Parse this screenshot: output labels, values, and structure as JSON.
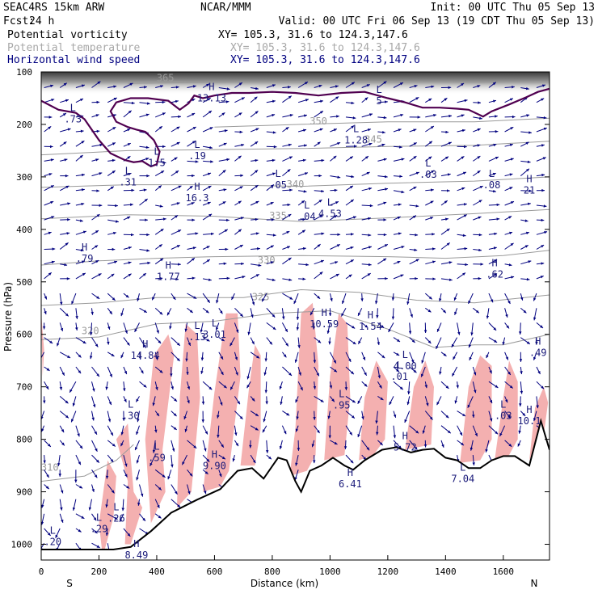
{
  "header": {
    "model": "SEAC4RS 15km ARW",
    "org": "NCAR/MMM",
    "init": "Init: 00 UTC Thu 05 Sep 13",
    "fcst_label": "Fcst:",
    "fcst_value": "24 h",
    "valid": "Valid: 00 UTC Fri 06 Sep 13 (19 CDT Thu 05 Sep 13)",
    "fields": [
      {
        "name": "Potential vorticity",
        "xy": "XY= 105.3, 31.6 to 124.3,147.6",
        "color": "#000000",
        "xy_color": "#000000"
      },
      {
        "name": "Potential temperature",
        "xy": "XY= 105.3, 31.6 to 124.3,147.6",
        "color": "#a8a8a8",
        "xy_color": "#a8a8a8"
      },
      {
        "name": "Horizontal wind speed",
        "xy": "XY= 105.3, 31.6 to 124.3,147.6",
        "color": "#000080",
        "xy_color": "#000080"
      }
    ]
  },
  "chart_data": {
    "type": "cross-section",
    "xlabel": "Distance (km)",
    "ylabel": "Pressure (hPa)",
    "xlim": [
      0,
      1760
    ],
    "ylim": [
      1030,
      100
    ],
    "x_ticks": [
      0,
      200,
      400,
      600,
      800,
      1000,
      1200,
      1400,
      1600
    ],
    "y_ticks": [
      100,
      200,
      300,
      400,
      500,
      600,
      700,
      800,
      900,
      1000
    ],
    "x_end_labels": {
      "left": "S",
      "right": "N"
    },
    "colors": {
      "wind": "#00007f",
      "theta": "#9a9a9a",
      "pv_contour": "#500050",
      "shading": "#f4b0b0",
      "terrain": "#000000",
      "hl_label": "#1a1a7a"
    },
    "terrain": [
      {
        "x": 0,
        "p": 1010
      },
      {
        "x": 250,
        "p": 1010
      },
      {
        "x": 310,
        "p": 1005
      },
      {
        "x": 380,
        "p": 975
      },
      {
        "x": 450,
        "p": 940
      },
      {
        "x": 540,
        "p": 915
      },
      {
        "x": 620,
        "p": 895
      },
      {
        "x": 680,
        "p": 860
      },
      {
        "x": 730,
        "p": 855
      },
      {
        "x": 770,
        "p": 875
      },
      {
        "x": 820,
        "p": 835
      },
      {
        "x": 850,
        "p": 840
      },
      {
        "x": 880,
        "p": 880
      },
      {
        "x": 900,
        "p": 900
      },
      {
        "x": 930,
        "p": 860
      },
      {
        "x": 970,
        "p": 850
      },
      {
        "x": 1010,
        "p": 835
      },
      {
        "x": 1050,
        "p": 850
      },
      {
        "x": 1080,
        "p": 858
      },
      {
        "x": 1120,
        "p": 840
      },
      {
        "x": 1180,
        "p": 820
      },
      {
        "x": 1230,
        "p": 815
      },
      {
        "x": 1280,
        "p": 825
      },
      {
        "x": 1320,
        "p": 820
      },
      {
        "x": 1360,
        "p": 818
      },
      {
        "x": 1400,
        "p": 835
      },
      {
        "x": 1440,
        "p": 840
      },
      {
        "x": 1480,
        "p": 855
      },
      {
        "x": 1520,
        "p": 855
      },
      {
        "x": 1560,
        "p": 840
      },
      {
        "x": 1600,
        "p": 832
      },
      {
        "x": 1640,
        "p": 832
      },
      {
        "x": 1690,
        "p": 850
      },
      {
        "x": 1730,
        "p": 765
      },
      {
        "x": 1760,
        "p": 820
      }
    ],
    "pv_contour": [
      {
        "x": 0,
        "p": 155
      },
      {
        "x": 60,
        "p": 172
      },
      {
        "x": 120,
        "p": 178
      },
      {
        "x": 150,
        "p": 190
      },
      {
        "x": 200,
        "p": 230
      },
      {
        "x": 240,
        "p": 255
      },
      {
        "x": 290,
        "p": 268
      },
      {
        "x": 320,
        "p": 272
      },
      {
        "x": 350,
        "p": 270
      },
      {
        "x": 380,
        "p": 280
      },
      {
        "x": 400,
        "p": 276
      },
      {
        "x": 410,
        "p": 252
      },
      {
        "x": 390,
        "p": 230
      },
      {
        "x": 360,
        "p": 214
      },
      {
        "x": 330,
        "p": 210
      },
      {
        "x": 300,
        "p": 205
      },
      {
        "x": 260,
        "p": 195
      },
      {
        "x": 240,
        "p": 175
      },
      {
        "x": 260,
        "p": 158
      },
      {
        "x": 310,
        "p": 150
      },
      {
        "x": 370,
        "p": 150
      },
      {
        "x": 440,
        "p": 155
      },
      {
        "x": 480,
        "p": 172
      },
      {
        "x": 510,
        "p": 160
      },
      {
        "x": 530,
        "p": 145
      },
      {
        "x": 560,
        "p": 150
      },
      {
        "x": 600,
        "p": 145
      },
      {
        "x": 660,
        "p": 140
      },
      {
        "x": 720,
        "p": 140
      },
      {
        "x": 800,
        "p": 138
      },
      {
        "x": 880,
        "p": 140
      },
      {
        "x": 960,
        "p": 145
      },
      {
        "x": 1040,
        "p": 140
      },
      {
        "x": 1120,
        "p": 138
      },
      {
        "x": 1200,
        "p": 150
      },
      {
        "x": 1260,
        "p": 158
      },
      {
        "x": 1320,
        "p": 168
      },
      {
        "x": 1380,
        "p": 168
      },
      {
        "x": 1440,
        "p": 170
      },
      {
        "x": 1480,
        "p": 172
      },
      {
        "x": 1530,
        "p": 185
      },
      {
        "x": 1560,
        "p": 175
      },
      {
        "x": 1620,
        "p": 162
      },
      {
        "x": 1680,
        "p": 148
      },
      {
        "x": 1720,
        "p": 138
      },
      {
        "x": 1760,
        "p": 132
      }
    ],
    "theta_lines": [
      {
        "theta": "310",
        "label_x": 30,
        "label_p": 860,
        "points": [
          [
            0,
            880
          ],
          [
            150,
            870
          ],
          [
            260,
            840
          ],
          [
            320,
            810
          ]
        ]
      },
      {
        "theta": "320",
        "label_x": 170,
        "label_p": 600,
        "points": [
          [
            0,
            610
          ],
          [
            200,
            605
          ],
          [
            400,
            580
          ],
          [
            600,
            575
          ],
          [
            800,
            560
          ],
          [
            1000,
            555
          ],
          [
            1200,
            590
          ],
          [
            1360,
            625
          ],
          [
            1500,
            620
          ],
          [
            1600,
            620
          ],
          [
            1760,
            600
          ]
        ]
      },
      {
        "theta": "325",
        "label_x": 760,
        "label_p": 535,
        "points": [
          [
            0,
            545
          ],
          [
            200,
            540
          ],
          [
            400,
            530
          ],
          [
            700,
            530
          ],
          [
            900,
            515
          ],
          [
            1100,
            520
          ],
          [
            1300,
            535
          ],
          [
            1500,
            540
          ],
          [
            1760,
            525
          ]
        ]
      },
      {
        "theta": "330",
        "label_x": 780,
        "label_p": 465,
        "points": [
          [
            0,
            468
          ],
          [
            200,
            460
          ],
          [
            400,
            455
          ],
          [
            600,
            452
          ],
          [
            900,
            450
          ],
          [
            1200,
            452
          ],
          [
            1400,
            455
          ],
          [
            1600,
            450
          ],
          [
            1760,
            440
          ]
        ]
      },
      {
        "theta": "335",
        "label_x": 820,
        "label_p": 380,
        "points": [
          [
            0,
            380
          ],
          [
            300,
            372
          ],
          [
            600,
            375
          ],
          [
            900,
            385
          ],
          [
            1200,
            378
          ],
          [
            1500,
            370
          ],
          [
            1760,
            362
          ]
        ]
      },
      {
        "theta": "340",
        "label_x": 880,
        "label_p": 320,
        "points": [
          [
            0,
            320
          ],
          [
            300,
            315
          ],
          [
            600,
            315
          ],
          [
            900,
            318
          ],
          [
            1200,
            312
          ],
          [
            1500,
            308
          ],
          [
            1760,
            300
          ]
        ]
      },
      {
        "theta": "345",
        "label_x": 1150,
        "label_p": 235,
        "points": [
          [
            0,
            258
          ],
          [
            300,
            250
          ],
          [
            600,
            248
          ],
          [
            900,
            246
          ],
          [
            1200,
            242
          ],
          [
            1500,
            240
          ],
          [
            1760,
            232
          ]
        ]
      },
      {
        "theta": "350",
        "label_x": 960,
        "label_p": 200,
        "points": [
          [
            600,
            205
          ],
          [
            900,
            200
          ],
          [
            1200,
            195
          ],
          [
            1500,
            195
          ],
          [
            1760,
            188
          ]
        ]
      },
      {
        "theta": "365",
        "label_x": 430,
        "label_p": 118,
        "points": [
          [
            300,
            122
          ],
          [
            600,
            120
          ],
          [
            900,
            118
          ],
          [
            1200,
            118
          ],
          [
            1500,
            120
          ],
          [
            1760,
            118
          ]
        ]
      }
    ],
    "shading": [
      [
        [
          290,
          1000
        ],
        [
          300,
          880
        ],
        [
          260,
          800
        ],
        [
          300,
          770
        ],
        [
          320,
          900
        ],
        [
          350,
          930
        ],
        [
          310,
          1000
        ]
      ],
      [
        [
          220,
          1010
        ],
        [
          250,
          950
        ],
        [
          260,
          870
        ],
        [
          230,
          840
        ],
        [
          200,
          960
        ],
        [
          210,
          1010
        ]
      ],
      [
        [
          380,
          960
        ],
        [
          360,
          800
        ],
        [
          390,
          640
        ],
        [
          440,
          600
        ],
        [
          460,
          640
        ],
        [
          420,
          820
        ],
        [
          430,
          900
        ]
      ],
      [
        [
          470,
          930
        ],
        [
          480,
          720
        ],
        [
          500,
          580
        ],
        [
          540,
          600
        ],
        [
          550,
          720
        ],
        [
          520,
          900
        ]
      ],
      [
        [
          560,
          900
        ],
        [
          600,
          710
        ],
        [
          640,
          560
        ],
        [
          680,
          560
        ],
        [
          690,
          680
        ],
        [
          650,
          860
        ],
        [
          620,
          890
        ]
      ],
      [
        [
          690,
          850
        ],
        [
          720,
          700
        ],
        [
          740,
          620
        ],
        [
          760,
          640
        ],
        [
          760,
          780
        ],
        [
          740,
          850
        ]
      ],
      [
        [
          860,
          870
        ],
        [
          880,
          780
        ],
        [
          900,
          560
        ],
        [
          940,
          540
        ],
        [
          960,
          660
        ],
        [
          950,
          830
        ],
        [
          920,
          860
        ]
      ],
      [
        [
          980,
          840
        ],
        [
          1000,
          680
        ],
        [
          1030,
          560
        ],
        [
          1060,
          580
        ],
        [
          1070,
          720
        ],
        [
          1050,
          830
        ]
      ],
      [
        [
          1100,
          840
        ],
        [
          1120,
          720
        ],
        [
          1160,
          650
        ],
        [
          1200,
          690
        ],
        [
          1190,
          800
        ],
        [
          1150,
          830
        ]
      ],
      [
        [
          1260,
          820
        ],
        [
          1290,
          700
        ],
        [
          1330,
          650
        ],
        [
          1360,
          700
        ],
        [
          1350,
          810
        ]
      ],
      [
        [
          1450,
          845
        ],
        [
          1480,
          700
        ],
        [
          1520,
          640
        ],
        [
          1560,
          660
        ],
        [
          1560,
          800
        ],
        [
          1520,
          840
        ]
      ],
      [
        [
          1570,
          840
        ],
        [
          1600,
          720
        ],
        [
          1620,
          650
        ],
        [
          1650,
          690
        ],
        [
          1650,
          800
        ],
        [
          1620,
          830
        ]
      ],
      [
        [
          1690,
          840
        ],
        [
          1710,
          740
        ],
        [
          1740,
          700
        ],
        [
          1755,
          730
        ],
        [
          1740,
          790
        ],
        [
          1720,
          800
        ]
      ],
      [
        [
          0,
          560
        ],
        [
          10,
          630
        ],
        [
          5,
          680
        ]
      ]
    ],
    "hl_labels": [
      {
        "x": 40,
        "p": 980,
        "letter": "L",
        "value": ".20"
      },
      {
        "x": 200,
        "p": 955,
        "letter": "L",
        "value": ".29"
      },
      {
        "x": 260,
        "p": 935,
        "letter": "L",
        "value": ".26"
      },
      {
        "x": 330,
        "p": 1005,
        "letter": "H",
        "value": "8.49"
      },
      {
        "x": 310,
        "p": 740,
        "letter": "L",
        "value": ".30"
      },
      {
        "x": 400,
        "p": 820,
        "letter": "L",
        "value": ".59"
      },
      {
        "x": 360,
        "p": 625,
        "letter": "H",
        "value": "14.84"
      },
      {
        "x": 440,
        "p": 475,
        "letter": "H",
        "value": "1.77"
      },
      {
        "x": 150,
        "p": 440,
        "letter": "H",
        "value": ".79"
      },
      {
        "x": 300,
        "p": 295,
        "letter": "L",
        "value": ".31"
      },
      {
        "x": 110,
        "p": 175,
        "letter": "L",
        "value": ".73"
      },
      {
        "x": 400,
        "p": 258,
        "letter": "L",
        "value": "1.5"
      },
      {
        "x": 540,
        "p": 245,
        "letter": "L",
        "value": ".19"
      },
      {
        "x": 540,
        "p": 325,
        "letter": "H",
        "value": "16.3"
      },
      {
        "x": 590,
        "p": 135,
        "letter": "H",
        "value": "13.13"
      },
      {
        "x": 540,
        "p": 590,
        "letter": "L",
        "value": ".13"
      },
      {
        "x": 600,
        "p": 585,
        "letter": "L",
        "value": "3.01"
      },
      {
        "x": 600,
        "p": 835,
        "letter": "H",
        "value": "9.90"
      },
      {
        "x": 820,
        "p": 300,
        "letter": "L",
        "value": ".05"
      },
      {
        "x": 920,
        "p": 360,
        "letter": "L",
        "value": ".04"
      },
      {
        "x": 980,
        "p": 565,
        "letter": "H",
        "value": "10.59"
      },
      {
        "x": 1000,
        "p": 355,
        "letter": "L",
        "value": "4.53"
      },
      {
        "x": 1040,
        "p": 720,
        "letter": "L",
        "value": ".95"
      },
      {
        "x": 1070,
        "p": 870,
        "letter": "H",
        "value": "6.41"
      },
      {
        "x": 1140,
        "p": 570,
        "letter": "H",
        "value": "1.54"
      },
      {
        "x": 1090,
        "p": 215,
        "letter": "L",
        "value": "1.28"
      },
      {
        "x": 1170,
        "p": 140,
        "letter": "L",
        "value": "5"
      },
      {
        "x": 1240,
        "p": 665,
        "letter": "L",
        "value": ".01"
      },
      {
        "x": 1260,
        "p": 645,
        "letter": "L",
        "value": "4.00"
      },
      {
        "x": 1260,
        "p": 800,
        "letter": "H",
        "value": "5.72"
      },
      {
        "x": 1340,
        "p": 280,
        "letter": "L",
        "value": ".03"
      },
      {
        "x": 1460,
        "p": 860,
        "letter": "L",
        "value": "7.04"
      },
      {
        "x": 1600,
        "p": 740,
        "letter": "L",
        "value": ".03"
      },
      {
        "x": 1560,
        "p": 300,
        "letter": "L",
        "value": ".08"
      },
      {
        "x": 1570,
        "p": 470,
        "letter": "H",
        "value": ".62"
      },
      {
        "x": 1690,
        "p": 310,
        "letter": "H",
        "value": "21"
      },
      {
        "x": 1690,
        "p": 750,
        "letter": "H",
        "value": "10.1"
      },
      {
        "x": 1720,
        "p": 620,
        "letter": "H",
        "value": ".49"
      }
    ]
  }
}
